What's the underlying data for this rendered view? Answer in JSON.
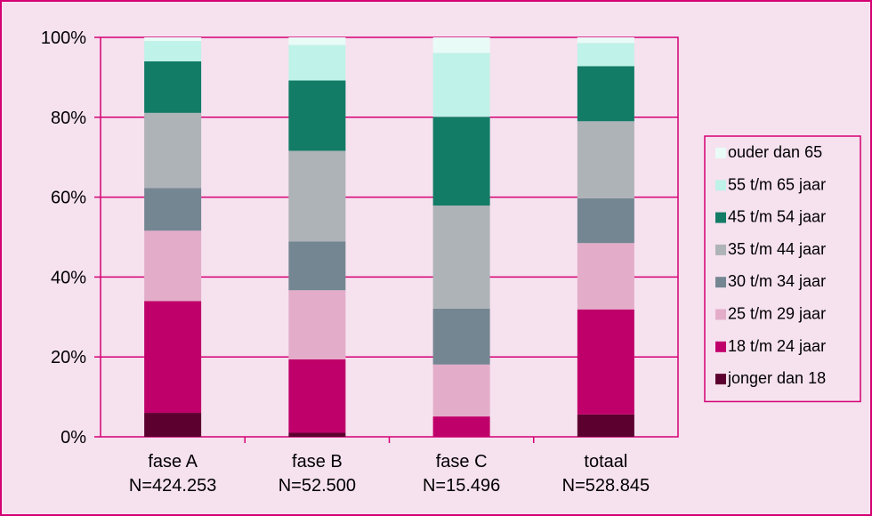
{
  "chart_data": {
    "type": "bar",
    "stacked": true,
    "percent_stacked": true,
    "categories": [
      [
        "fase A",
        "N=424.253"
      ],
      [
        "fase B",
        "N=52.500"
      ],
      [
        "fase C",
        "N=15.496"
      ],
      [
        "totaal",
        "N=528.845"
      ]
    ],
    "ylim": [
      0,
      100
    ],
    "yticks": [
      "0%",
      "20%",
      "40%",
      "60%",
      "80%",
      "100%"
    ],
    "grid": true,
    "legend_position": "right",
    "series": [
      {
        "name": "jonger dan 18",
        "color": "#5c0030",
        "values": [
          6,
          1,
          0,
          5.6
        ]
      },
      {
        "name": "18 t/m 24 jaar",
        "color": "#c0006a",
        "values": [
          28,
          18.4,
          5.1,
          26.3
        ]
      },
      {
        "name": "25 t/m 29 jaar",
        "color": "#e3adc9",
        "values": [
          17.6,
          17.3,
          13,
          16.6
        ]
      },
      {
        "name": "30 t/m 34 jaar",
        "color": "#748692",
        "values": [
          10.7,
          12.2,
          14,
          11.2
        ]
      },
      {
        "name": "35 t/m 44 jaar",
        "color": "#aeb3b8",
        "values": [
          18.8,
          22.7,
          25.8,
          19.3
        ]
      },
      {
        "name": "45 t/m 54 jaar",
        "color": "#127c66",
        "values": [
          12.9,
          17.6,
          22.2,
          13.8
        ]
      },
      {
        "name": "55 t/m 65 jaar",
        "color": "#bff2e8",
        "values": [
          5.1,
          8.9,
          16,
          5.8
        ]
      },
      {
        "name": "ouder dan 65",
        "color": "#e9fbf7",
        "values": [
          0.9,
          1.9,
          3.9,
          1.4
        ]
      }
    ]
  }
}
